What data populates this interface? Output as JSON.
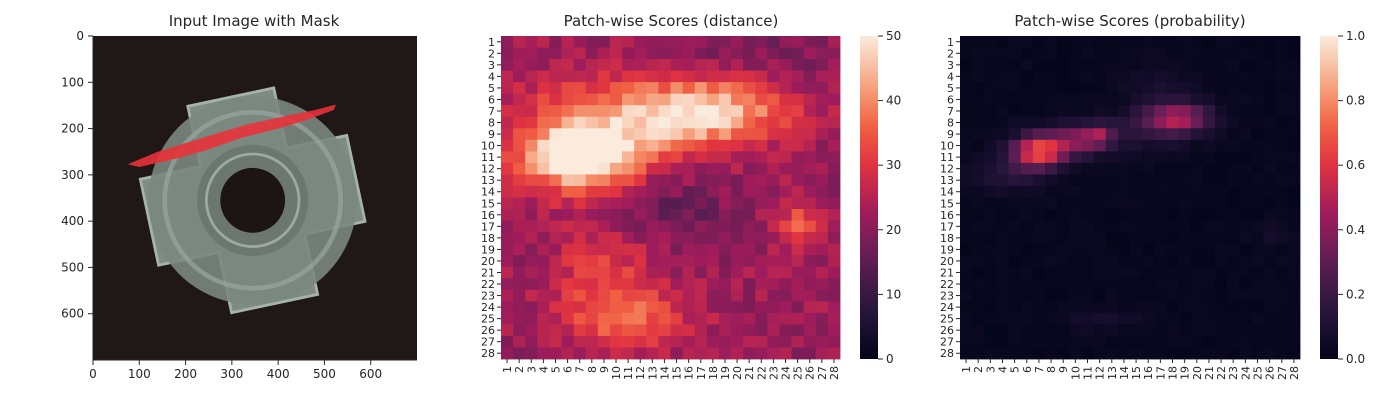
{
  "chart_data": [
    {
      "type": "image",
      "title": "Input Image with Mask",
      "x_ticks": [
        "0",
        "100",
        "200",
        "300",
        "400",
        "500",
        "600"
      ],
      "y_ticks": [
        "0",
        "100",
        "200",
        "300",
        "400",
        "500",
        "600"
      ],
      "xlim": [
        0,
        700
      ],
      "ylim": [
        700,
        0
      ],
      "image": {
        "background_color": "#201816",
        "object": "four-lobed metal nut",
        "object_color": "#7f8c84",
        "hole_color": "#1d1514",
        "mask_color": "#e8323a",
        "mask_polyline": [
          [
            75,
            277
          ],
          [
            140,
            250
          ],
          [
            230,
            222
          ],
          [
            330,
            192
          ],
          [
            420,
            172
          ],
          [
            480,
            160
          ],
          [
            525,
            148
          ],
          [
            520,
            160
          ],
          [
            460,
            182
          ],
          [
            400,
            200
          ],
          [
            320,
            220
          ],
          [
            250,
            245
          ],
          [
            180,
            265
          ],
          [
            100,
            283
          ],
          [
            75,
            277
          ]
        ]
      }
    },
    {
      "type": "heatmap",
      "title": "Patch-wise Scores (distance)",
      "rows": 28,
      "cols": 28,
      "x_ticks": [
        "1",
        "2",
        "3",
        "4",
        "5",
        "6",
        "7",
        "8",
        "9",
        "10",
        "11",
        "12",
        "13",
        "14",
        "15",
        "16",
        "17",
        "18",
        "19",
        "20",
        "21",
        "22",
        "23",
        "24",
        "25",
        "26",
        "27",
        "28"
      ],
      "y_ticks": [
        "1",
        "2",
        "3",
        "4",
        "5",
        "6",
        "7",
        "8",
        "9",
        "10",
        "11",
        "12",
        "13",
        "14",
        "15",
        "16",
        "17",
        "18",
        "19",
        "20",
        "21",
        "22",
        "23",
        "24",
        "25",
        "26",
        "27",
        "28"
      ],
      "colorbar": {
        "min": 0,
        "max": 50,
        "ticks": [
          "0",
          "10",
          "20",
          "30",
          "40",
          "50"
        ]
      },
      "colormap": "rocket",
      "value_model": {
        "base": 22,
        "blobs": [
          {
            "x": 7,
            "y": 11,
            "sx": 3.0,
            "sy": 1.8,
            "amp": 28
          },
          {
            "x": 7,
            "y": 9,
            "sx": 5.0,
            "sy": 3.5,
            "amp": 12
          },
          {
            "x": 18,
            "y": 7,
            "sx": 4.5,
            "sy": 2.0,
            "amp": 22
          },
          {
            "x": 13,
            "y": 8,
            "sx": 4.0,
            "sy": 2.2,
            "amp": 10
          },
          {
            "x": 11,
            "y": 25,
            "sx": 3.5,
            "sy": 1.8,
            "amp": 14
          },
          {
            "x": 9,
            "y": 21,
            "sx": 3.0,
            "sy": 2.5,
            "amp": 9
          },
          {
            "x": 25,
            "y": 17,
            "sx": 1.2,
            "sy": 1.5,
            "amp": 12
          },
          {
            "x": 15,
            "y": 15.5,
            "sx": 3.2,
            "sy": 2.2,
            "amp": -7
          },
          {
            "x": 21,
            "y": 2,
            "sx": 6.0,
            "sy": 1.5,
            "amp": -4
          }
        ],
        "noise": 3.5,
        "noise_seed": 7
      }
    },
    {
      "type": "heatmap",
      "title": "Patch-wise Scores (probability)",
      "rows": 28,
      "cols": 28,
      "x_ticks": [
        "1",
        "2",
        "3",
        "4",
        "5",
        "6",
        "7",
        "8",
        "9",
        "10",
        "11",
        "12",
        "13",
        "14",
        "15",
        "16",
        "17",
        "18",
        "19",
        "20",
        "21",
        "22",
        "23",
        "24",
        "25",
        "26",
        "27",
        "28"
      ],
      "y_ticks": [
        "1",
        "2",
        "3",
        "4",
        "5",
        "6",
        "7",
        "8",
        "9",
        "10",
        "11",
        "12",
        "13",
        "14",
        "15",
        "16",
        "17",
        "18",
        "19",
        "20",
        "21",
        "22",
        "23",
        "24",
        "25",
        "26",
        "27",
        "28"
      ],
      "colorbar": {
        "min": 0,
        "max": 1,
        "ticks": [
          "0.0",
          "0.2",
          "0.4",
          "0.6",
          "0.8",
          "1.0"
        ]
      },
      "colormap": "rocket",
      "value_model": {
        "base": 0.02,
        "blobs": [
          {
            "x": 7,
            "y": 10.5,
            "sx": 1.5,
            "sy": 1.0,
            "amp": 0.68
          },
          {
            "x": 10.5,
            "y": 9.5,
            "sx": 1.6,
            "sy": 0.9,
            "amp": 0.38
          },
          {
            "x": 12,
            "y": 9,
            "sx": 0.7,
            "sy": 0.6,
            "amp": 0.22
          },
          {
            "x": 18.5,
            "y": 7.6,
            "sx": 1.8,
            "sy": 0.9,
            "amp": 0.45
          },
          {
            "x": 15.5,
            "y": 8.6,
            "sx": 2.5,
            "sy": 1.2,
            "amp": 0.12
          },
          {
            "x": 17,
            "y": 5,
            "sx": 2.0,
            "sy": 1.5,
            "amp": 0.06
          },
          {
            "x": 4.5,
            "y": 12.5,
            "sx": 2.0,
            "sy": 1.0,
            "amp": 0.12
          },
          {
            "x": 12,
            "y": 25,
            "sx": 2.0,
            "sy": 0.7,
            "amp": 0.06
          },
          {
            "x": 26,
            "y": 17.5,
            "sx": 0.8,
            "sy": 0.8,
            "amp": 0.05
          }
        ],
        "noise": 0.015,
        "noise_seed": 11
      }
    }
  ]
}
